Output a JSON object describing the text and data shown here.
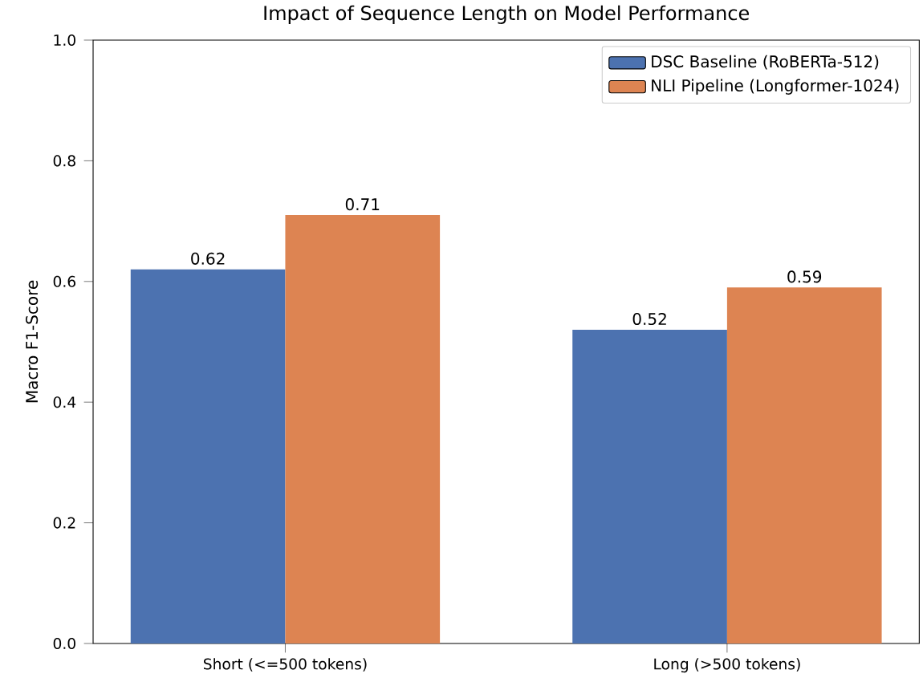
{
  "chart_data": {
    "type": "bar",
    "title": "Impact of Sequence Length on Model Performance",
    "ylabel": "Macro F1-Score",
    "categories": [
      "Short (<=500 tokens)",
      "Long (>500 tokens)"
    ],
    "series": [
      {
        "name": "DSC Baseline (RoBERTa-512)",
        "color": "#4c72b0",
        "values": [
          0.62,
          0.52
        ]
      },
      {
        "name": "NLI Pipeline (Longformer-1024)",
        "color": "#dd8452",
        "values": [
          0.71,
          0.59
        ]
      }
    ],
    "ylim": [
      0,
      1
    ],
    "yticks": [
      {
        "value": 0,
        "label": "0.0"
      },
      0.2,
      0.4,
      0.6,
      0.8,
      {
        "value": 1,
        "label": "1.0"
      }
    ],
    "data_labels": true,
    "legend": "top right",
    "grid": false
  }
}
